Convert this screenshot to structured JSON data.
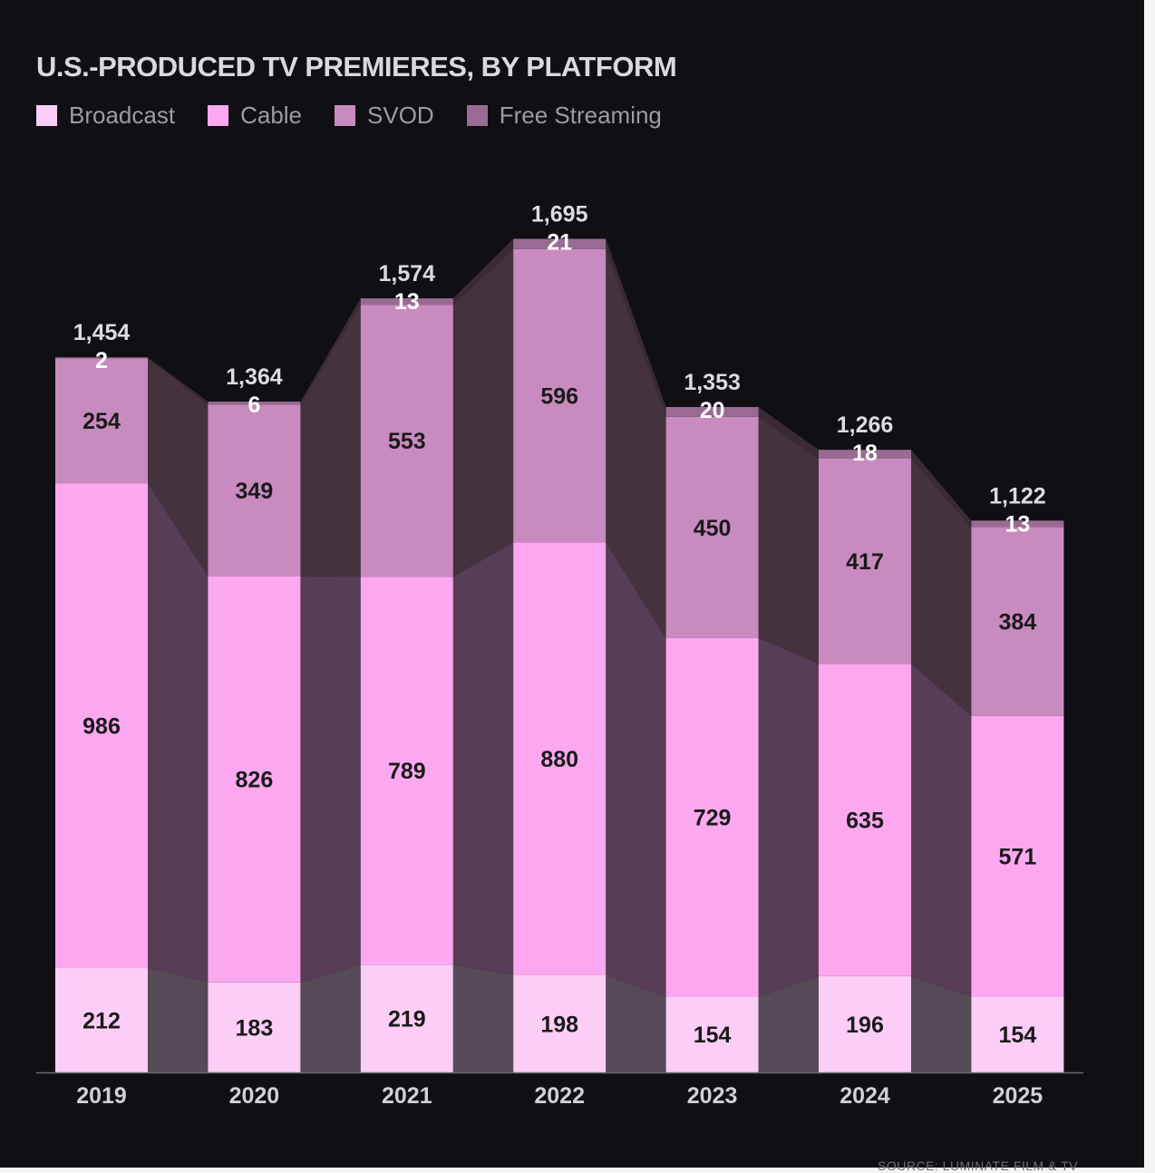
{
  "chart_data": {
    "type": "bar",
    "stacked": true,
    "title": "U.S.-PRODUCED TV PREMIERES, BY PLATFORM",
    "categories": [
      "2019",
      "2020",
      "2021",
      "2022",
      "2023",
      "2024",
      "2025"
    ],
    "series": [
      {
        "name": "Broadcast",
        "color": "#fccdf5",
        "values": [
          212,
          183,
          219,
          198,
          154,
          196,
          154
        ]
      },
      {
        "name": "Cable",
        "color": "#fca8f0",
        "values": [
          986,
          826,
          789,
          880,
          729,
          635,
          571
        ]
      },
      {
        "name": "SVOD",
        "color": "#c98bbf",
        "values": [
          254,
          349,
          553,
          596,
          450,
          417,
          384
        ]
      },
      {
        "name": "Free Streaming",
        "color": "#9a6b92",
        "values": [
          2,
          6,
          13,
          21,
          20,
          18,
          13
        ]
      }
    ],
    "totals": [
      "1,454",
      "1,364",
      "1,574",
      "1,695",
      "1,353",
      "1,266",
      "1,122"
    ],
    "legend_position": "top-left",
    "grid": false,
    "ylim": [
      0,
      1750
    ],
    "source": "SOURCE: LUMINATE FILM & TV"
  }
}
